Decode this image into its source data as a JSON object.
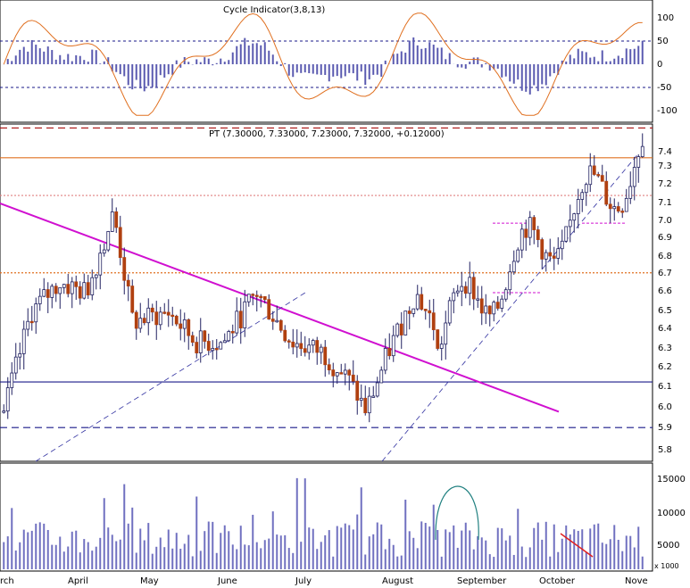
{
  "chart_data": [
    {
      "type": "bar+line",
      "panel": "cycle",
      "title": "Cycle Indicator(3,8,13)",
      "y_ticks": [
        "100",
        "50",
        "0",
        "-50",
        "-100"
      ],
      "ylim": [
        -120,
        120
      ],
      "reference_lines": [
        50,
        -50
      ],
      "colors": {
        "bars": "#5a5ab0",
        "line": "#e07020",
        "ref": "#1a1a8a"
      }
    },
    {
      "type": "candlestick",
      "panel": "price",
      "title": "PT (7.30000, 7.33000, 7.23000, 7.32000, +0.12000)",
      "y_ticks": [
        "7.4",
        "7.3",
        "7.2",
        "7.1",
        "7.0",
        "6.9",
        "6.8",
        "6.7",
        "6.6",
        "6.5",
        "6.4",
        "6.3",
        "6.2",
        "6.1",
        "6.0",
        "5.9",
        "5.8"
      ],
      "ylim": [
        5.75,
        7.45
      ],
      "horizontal_levels": [
        {
          "value": 7.28,
          "color": "#e07020",
          "style": "solid"
        },
        {
          "value": 7.09,
          "color": "#e08080",
          "style": "dotted"
        },
        {
          "value": 6.7,
          "color": "#e07020",
          "style": "dotted"
        },
        {
          "value": 6.15,
          "color": "#1a1a8a",
          "style": "solid"
        },
        {
          "value": 5.92,
          "color": "#1a1a8a",
          "style": "dashed"
        },
        {
          "value": 7.43,
          "color": "#aa1010",
          "style": "dashed"
        }
      ],
      "trendline": {
        "color": "#d010d0",
        "from": {
          "x": "March",
          "y": 7.05
        },
        "to": {
          "x": "September-end",
          "y": 6.0
        }
      },
      "colors": {
        "up": "#ffffff",
        "down": "#b04010",
        "outline": "#202060"
      }
    },
    {
      "type": "bar",
      "panel": "volume",
      "y_ticks": [
        "15000",
        "10000",
        "5000"
      ],
      "unit_label": "x 1000",
      "ylim": [
        0,
        17500
      ],
      "x_labels": [
        "rch",
        "April",
        "May",
        "June",
        "July",
        "August",
        "September",
        "October",
        "Nove"
      ],
      "colors": {
        "bars": "#7070c0",
        "circle": "#208080",
        "arrow": "#e02020"
      }
    }
  ]
}
